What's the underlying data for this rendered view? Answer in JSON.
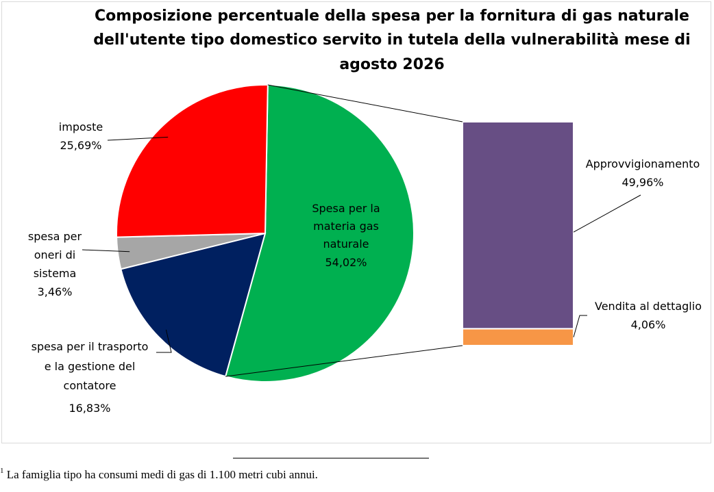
{
  "chart_data": {
    "type": "pie",
    "title": [
      "Composizione percentuale della spesa per la fornitura di gas naturale",
      "dell'utente tipo domestico servito in tutela della vulnerabilità mese di",
      "agosto 2026"
    ],
    "slices": [
      {
        "label": [
          "Spesa per la",
          "materia gas",
          "naturale"
        ],
        "value_text": "54,02%",
        "value": 54.02,
        "color": "#00b050"
      },
      {
        "label": [
          "spesa per il trasporto",
          "e la gestione del",
          "contatore"
        ],
        "value_text": "16,83%",
        "value": 16.83,
        "color": "#002060"
      },
      {
        "label": [
          "spesa per",
          "oneri di",
          "sistema"
        ],
        "value_text": "3,46%",
        "value": 3.46,
        "color": "#a6a6a6"
      },
      {
        "label": [
          "imposte"
        ],
        "value_text": "25,69%",
        "value": 25.69,
        "color": "#ff0000"
      }
    ],
    "breakdown": {
      "of_slice": "Spesa per la materia gas naturale",
      "type": "stacked-bar",
      "segments": [
        {
          "label": "Approvvigionamento",
          "value_text": "49,96%",
          "value": 49.96,
          "color": "#674e84"
        },
        {
          "label": "Vendita al dettaglio",
          "value_text": "4,06%",
          "value": 4.06,
          "color": "#f79646"
        }
      ]
    }
  },
  "footnote": {
    "marker": "1",
    "text": "La famiglia tipo ha consumi medi di gas di 1.100 metri cubi annui."
  }
}
